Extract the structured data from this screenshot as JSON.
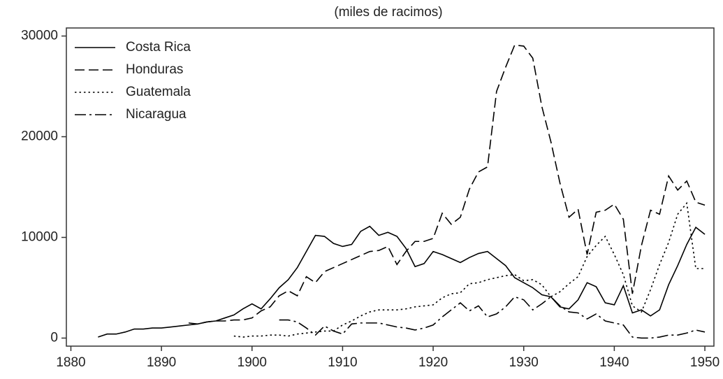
{
  "chart_data": {
    "type": "line",
    "title": "(miles de racimos)",
    "x": [
      1883,
      1884,
      1885,
      1886,
      1887,
      1888,
      1889,
      1890,
      1891,
      1892,
      1893,
      1894,
      1895,
      1896,
      1897,
      1898,
      1899,
      1900,
      1901,
      1902,
      1903,
      1904,
      1905,
      1906,
      1907,
      1908,
      1909,
      1910,
      1911,
      1912,
      1913,
      1914,
      1915,
      1916,
      1917,
      1918,
      1919,
      1920,
      1921,
      1922,
      1923,
      1924,
      1925,
      1926,
      1927,
      1928,
      1929,
      1930,
      1931,
      1932,
      1933,
      1934,
      1935,
      1936,
      1937,
      1938,
      1939,
      1940,
      1941,
      1942,
      1943,
      1944,
      1945,
      1946,
      1947,
      1948,
      1949,
      1950
    ],
    "series": [
      {
        "name": "Costa Rica",
        "color": "#000000",
        "dash": "solid",
        "values": [
          100,
          400,
          400,
          600,
          900,
          900,
          1000,
          1000,
          1100,
          1200,
          1300,
          1400,
          1600,
          1700,
          2000,
          2300,
          2900,
          3400,
          2900,
          3900,
          5000,
          5800,
          7000,
          8600,
          10200,
          10100,
          9400,
          9100,
          9300,
          10600,
          11100,
          10200,
          10500,
          10100,
          8900,
          7100,
          7400,
          8600,
          8300,
          7900,
          7500,
          8000,
          8400,
          8600,
          7900,
          7200,
          6000,
          5500,
          5000,
          4300,
          4100,
          3100,
          2900,
          3800,
          5500,
          5100,
          3500,
          3300,
          5200,
          2500,
          2800,
          2200,
          2800,
          5300,
          7200,
          9300,
          11000,
          10300
        ]
      },
      {
        "name": "Honduras",
        "color": "#000000",
        "dash": "dashed",
        "values": [
          null,
          null,
          null,
          null,
          null,
          null,
          null,
          null,
          null,
          null,
          1500,
          1400,
          1600,
          1700,
          1700,
          1800,
          1800,
          2000,
          2700,
          3100,
          4200,
          4700,
          4200,
          6100,
          5500,
          6600,
          7000,
          7400,
          7800,
          8200,
          8600,
          8700,
          9100,
          7300,
          8600,
          9600,
          9600,
          9900,
          12400,
          11300,
          12000,
          14800,
          16500,
          17000,
          24500,
          26900,
          29100,
          29000,
          27800,
          23000,
          19500,
          15400,
          12000,
          12800,
          8300,
          12500,
          12700,
          13300,
          11800,
          4400,
          9200,
          12700,
          12300,
          16100,
          14700,
          15600,
          13500,
          13200
        ]
      },
      {
        "name": "Guatemala",
        "color": "#000000",
        "dash": "dotted",
        "values": [
          null,
          null,
          null,
          null,
          null,
          null,
          null,
          null,
          null,
          null,
          null,
          null,
          null,
          null,
          null,
          200,
          100,
          200,
          200,
          300,
          300,
          200,
          400,
          500,
          600,
          700,
          700,
          1300,
          1700,
          2200,
          2600,
          2800,
          2800,
          2800,
          2900,
          3100,
          3200,
          3300,
          4000,
          4400,
          4500,
          5400,
          5500,
          5800,
          6000,
          6200,
          6300,
          5700,
          5800,
          5300,
          4100,
          4600,
          5400,
          6100,
          8100,
          9200,
          10100,
          8300,
          6300,
          3200,
          2600,
          4800,
          7300,
          9500,
          12300,
          13400,
          6900,
          6900
        ]
      },
      {
        "name": "Nicaragua",
        "color": "#000000",
        "dash": "dashdot",
        "values": [
          null,
          null,
          null,
          null,
          null,
          null,
          null,
          null,
          null,
          null,
          null,
          null,
          null,
          null,
          null,
          null,
          null,
          null,
          null,
          null,
          1800,
          1800,
          1600,
          1000,
          300,
          1200,
          700,
          400,
          1400,
          1500,
          1500,
          1500,
          1300,
          1100,
          1000,
          800,
          1000,
          1300,
          2100,
          2800,
          3500,
          2700,
          3200,
          2100,
          2400,
          3100,
          4100,
          3800,
          2800,
          3400,
          4100,
          3200,
          2600,
          2500,
          1900,
          2400,
          1700,
          1500,
          1300,
          100,
          0,
          0,
          100,
          300,
          300,
          500,
          800,
          600
        ]
      }
    ],
    "xlim": [
      1879.5,
      1951
    ],
    "xticks": [
      1880,
      1890,
      1900,
      1910,
      1920,
      1930,
      1940,
      1950
    ],
    "ylim": [
      -800,
      30800
    ],
    "yticks": [
      0,
      10000,
      20000,
      30000
    ],
    "legend": "top-left"
  }
}
